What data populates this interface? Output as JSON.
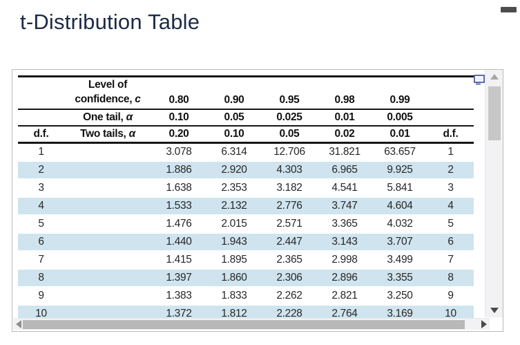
{
  "page": {
    "title": "t-Distribution Table"
  },
  "colors": {
    "title_text": "#1c2a47",
    "row_highlight": "#cfe4ee",
    "table_rule": "#161616",
    "minimize_dash": "#4d4d4d",
    "popout_blue": "#5b6bb0"
  },
  "icons": {
    "minimize": "horizontal-dash",
    "popout": "overlapping-window-rectangle",
    "scroll_up": "triangle-up",
    "scroll_down": "triangle-down",
    "scroll_left": "triangle-left",
    "scroll_right": "triangle-right"
  },
  "table": {
    "header": {
      "row1": {
        "label_line1": "Level of",
        "label_line2": "confidence, ",
        "symbol": "c",
        "values": [
          "0.80",
          "0.90",
          "0.95",
          "0.98",
          "0.99"
        ]
      },
      "row2": {
        "label": "One tail, ",
        "symbol": "α",
        "values": [
          "0.10",
          "0.05",
          "0.025",
          "0.01",
          "0.005"
        ]
      },
      "row3": {
        "df_left": "d.f.",
        "label": "Two tails, ",
        "symbol": "α",
        "values": [
          "0.20",
          "0.10",
          "0.05",
          "0.02",
          "0.01"
        ],
        "df_right": "d.f."
      }
    },
    "rows": [
      {
        "df": "1",
        "values": [
          "3.078",
          "6.314",
          "12.706",
          "31.821",
          "63.657"
        ]
      },
      {
        "df": "2",
        "values": [
          "1.886",
          "2.920",
          "4.303",
          "6.965",
          "9.925"
        ]
      },
      {
        "df": "3",
        "values": [
          "1.638",
          "2.353",
          "3.182",
          "4.541",
          "5.841"
        ]
      },
      {
        "df": "4",
        "values": [
          "1.533",
          "2.132",
          "2.776",
          "3.747",
          "4.604"
        ]
      },
      {
        "df": "5",
        "values": [
          "1.476",
          "2.015",
          "2.571",
          "3.365",
          "4.032"
        ]
      },
      {
        "df": "6",
        "values": [
          "1.440",
          "1.943",
          "2.447",
          "3.143",
          "3.707"
        ]
      },
      {
        "df": "7",
        "values": [
          "1.415",
          "1.895",
          "2.365",
          "2.998",
          "3.499"
        ]
      },
      {
        "df": "8",
        "values": [
          "1.397",
          "1.860",
          "2.306",
          "2.896",
          "3.355"
        ]
      },
      {
        "df": "9",
        "values": [
          "1.383",
          "1.833",
          "2.262",
          "2.821",
          "3.250"
        ]
      },
      {
        "df": "10",
        "values": [
          "1.372",
          "1.812",
          "2.228",
          "2.764",
          "3.169"
        ]
      }
    ]
  }
}
